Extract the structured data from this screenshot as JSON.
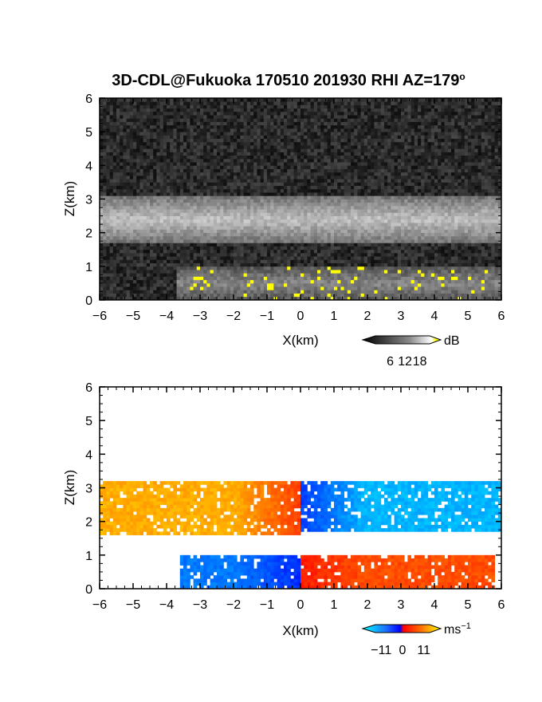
{
  "title": "3D-CDL@Fukuoka 170510 201930 RHI AZ=179",
  "title_degree": "o",
  "chart_data": [
    {
      "type": "heatmap",
      "panel": "reflectivity",
      "xlabel": "X(km)",
      "ylabel": "Z(km)",
      "xlim": [
        -6,
        6
      ],
      "ylim": [
        0,
        6
      ],
      "xticks": [
        "−6",
        "−5",
        "−4",
        "−3",
        "−2",
        "−1",
        "0",
        "1",
        "2",
        "3",
        "4",
        "5",
        "6"
      ],
      "yticks": [
        "0",
        "1",
        "2",
        "3",
        "4",
        "5",
        "6"
      ],
      "colorbar": {
        "unit": "dB",
        "ticks": [
          "6",
          "12",
          "18"
        ],
        "range": [
          0,
          22
        ],
        "colormap": "grayscale with yellow overflow"
      },
      "features": [
        {
          "name": "upper cloud layer",
          "x_range": [
            -6,
            6
          ],
          "z_range": [
            1.7,
            3.1
          ],
          "level_db": 12
        },
        {
          "name": "lower layer",
          "x_range": [
            -3.7,
            6
          ],
          "z_range": [
            0,
            1.0
          ],
          "level_db": 8
        },
        {
          "name": "high echo patches",
          "x_range": [
            -3.3,
            5.8
          ],
          "z_range": [
            0,
            1.0
          ],
          "level_db": 20
        }
      ],
      "background": "noise ~ 3 dB"
    },
    {
      "type": "heatmap",
      "panel": "doppler_velocity",
      "xlabel": "X(km)",
      "ylabel": "Z(km)",
      "xlim": [
        -6,
        6
      ],
      "ylim": [
        0,
        6
      ],
      "xticks": [
        "−6",
        "−5",
        "−4",
        "−3",
        "−2",
        "−1",
        "0",
        "1",
        "2",
        "3",
        "4",
        "5",
        "6"
      ],
      "yticks": [
        "0",
        "1",
        "2",
        "3",
        "4",
        "5",
        "6"
      ],
      "colorbar": {
        "unit": "ms",
        "unit_exponent": "−1",
        "ticks": [
          "−11",
          "0",
          "11"
        ],
        "range": [
          -14,
          14
        ],
        "colormap": "cyan-blue-red-yellow"
      },
      "features": [
        {
          "name": "upper layer left of 0",
          "x_range": [
            -6,
            0
          ],
          "z_range": [
            1.6,
            3.2
          ],
          "velocity": 9
        },
        {
          "name": "upper layer right of 0",
          "x_range": [
            0,
            6
          ],
          "z_range": [
            1.7,
            3.2
          ],
          "velocity": -9
        },
        {
          "name": "lower layer left of 0",
          "x_range": [
            -3.6,
            0
          ],
          "z_range": [
            0,
            1.0
          ],
          "velocity": -6
        },
        {
          "name": "lower layer right of 0",
          "x_range": [
            0,
            5.8
          ],
          "z_range": [
            0,
            1.0
          ],
          "velocity": 4
        }
      ]
    }
  ],
  "colors": {
    "highlight": "#ffff00",
    "velocity_positive": "#ffd700",
    "velocity_negative": "#00e5ee"
  }
}
